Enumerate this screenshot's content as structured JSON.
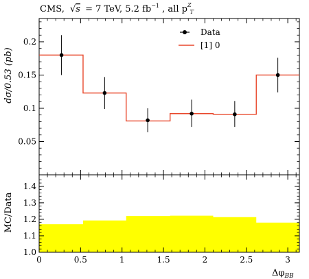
{
  "chart_data": [
    {
      "type": "line",
      "title": "CMS, √s = 7 TeV, 5.2 fb⁻¹, all p_T^Z",
      "title_parts": {
        "prefix": "CMS,",
        "sqrt_s": "s",
        "energy": "= 7 TeV, 5.2 fb",
        "lumi_exp": "−1",
        "suffix": ", all p",
        "pt_sup": "Z",
        "pt_sub": "T"
      },
      "xlabel": "Δφ",
      "xlabel_sub": "BB",
      "ylabel": "dσ/0.53 (pb)",
      "xlim": [
        0,
        3.14
      ],
      "ylim": [
        0,
        0.235
      ],
      "y_ticks": [
        0.05,
        0.1,
        0.15,
        0.2
      ],
      "y_tick_labels": [
        "0.05",
        "0.1",
        "0.15",
        "0.2"
      ],
      "legend_position": "top-right",
      "bin_edges": [
        0,
        0.53,
        1.05,
        1.58,
        2.1,
        2.62,
        3.14
      ],
      "series": [
        {
          "name": "Data",
          "color": "#000000",
          "style": "points-with-errors",
          "x": [
            0.27,
            0.79,
            1.31,
            1.84,
            2.36,
            2.88
          ],
          "y": [
            0.18,
            0.123,
            0.082,
            0.092,
            0.091,
            0.15
          ],
          "err_low": [
            0.03,
            0.024,
            0.018,
            0.02,
            0.019,
            0.026
          ],
          "err_high": [
            0.03,
            0.024,
            0.018,
            0.021,
            0.02,
            0.026
          ]
        },
        {
          "name": "[1] 0",
          "color": "#e8472b",
          "style": "histogram",
          "values": [
            0.18,
            0.123,
            0.081,
            0.092,
            0.091,
            0.15
          ]
        }
      ]
    },
    {
      "type": "area",
      "ylabel": "MC/Data",
      "xlabel": "Δφ",
      "xlabel_sub": "BB",
      "xlim": [
        0,
        3.14
      ],
      "ylim": [
        1.0,
        1.47
      ],
      "y_ticks": [
        1.0,
        1.1,
        1.2,
        1.3,
        1.4
      ],
      "y_tick_labels": [
        "1.0",
        "1.1",
        "1.2",
        "1.3",
        "1.4"
      ],
      "x_ticks": [
        0,
        0.5,
        1,
        1.5,
        2,
        2.5,
        3
      ],
      "x_tick_labels": [
        "0",
        "0.5",
        "1",
        "1.5",
        "2",
        "2.5",
        "3"
      ],
      "fill_color": "#ffff00",
      "bin_edges": [
        0,
        0.53,
        1.05,
        1.58,
        2.1,
        2.62,
        3.14
      ],
      "upper": [
        1.17,
        1.193,
        1.22,
        1.222,
        1.213,
        1.18
      ],
      "reference_line": 1.0
    }
  ]
}
